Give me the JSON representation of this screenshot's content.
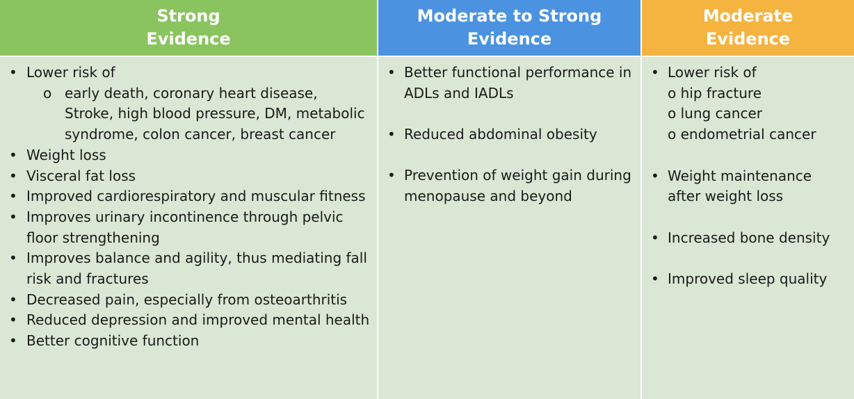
{
  "columns": [
    {
      "header_line1": "Strong",
      "header_line2": "Evidence",
      "color": "#8ac45f",
      "intro": "Lower risk of",
      "sub_items": [
        "early death, coronary heart disease, Stroke, high blood pressure, DM, metabolic syndrome, colon cancer, breast cancer"
      ],
      "items": [
        "Weight loss",
        "Visceral fat loss",
        "Improved cardiorespiratory and muscular fitness",
        "Improves urinary incontinence through pelvic floor strengthening",
        "Improves balance and agility, thus mediating fall risk and fractures",
        "Decreased pain, especially from osteoarthritis",
        "Reduced depression and improved mental health",
        "Better cognitive function"
      ]
    },
    {
      "header_line1": "Moderate to Strong",
      "header_line2": "Evidence",
      "color": "#4b93e0",
      "items": [
        "Better functional performance in ADLs and IADLs",
        "Reduced abdominal obesity",
        "Prevention of weight gain during menopause and beyond"
      ]
    },
    {
      "header_line1": "Moderate",
      "header_line2": "Evidence",
      "color": "#f5b33f",
      "intro": "Lower risk of",
      "sub_items": [
        "o hip fracture",
        "o lung cancer",
        "o endometrial cancer"
      ],
      "items": [
        "Weight maintenance after weight loss",
        "Increased bone density",
        "Improved sleep quality"
      ]
    }
  ]
}
